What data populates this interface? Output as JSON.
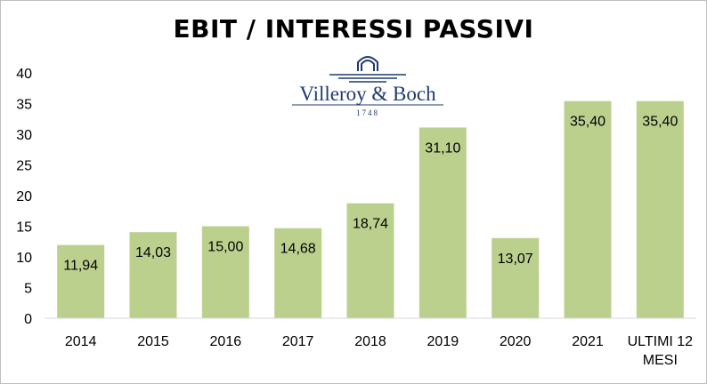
{
  "chart_data": {
    "type": "bar",
    "title": "EBIT / INTERESSI PASSIVI",
    "categories": [
      "2014",
      "2015",
      "2016",
      "2017",
      "2018",
      "2019",
      "2020",
      "2021",
      "ULTIMI 12 MESI"
    ],
    "category_lines": [
      [
        "2014"
      ],
      [
        "2015"
      ],
      [
        "2016"
      ],
      [
        "2017"
      ],
      [
        "2018"
      ],
      [
        "2019"
      ],
      [
        "2020"
      ],
      [
        "2021"
      ],
      [
        "ULTIMI 12",
        "MESI"
      ]
    ],
    "values": [
      11.94,
      14.03,
      15.0,
      14.68,
      18.74,
      31.1,
      13.07,
      35.4,
      35.4
    ],
    "data_labels": [
      "11,94",
      "14,03",
      "15,00",
      "14,68",
      "18,74",
      "31,10",
      "13,07",
      "35,40",
      "35,40"
    ],
    "ylim": [
      0,
      40
    ],
    "yticks": [
      "0",
      "5",
      "10",
      "15",
      "20",
      "25",
      "30",
      "35",
      "40"
    ],
    "xlabel": "",
    "ylabel": "",
    "grid": false,
    "legend": "none",
    "bar_color": "#bcd08e"
  },
  "logo": {
    "brand": "Villeroy & Boch",
    "year": "1748",
    "color": "#1f3a6e"
  }
}
